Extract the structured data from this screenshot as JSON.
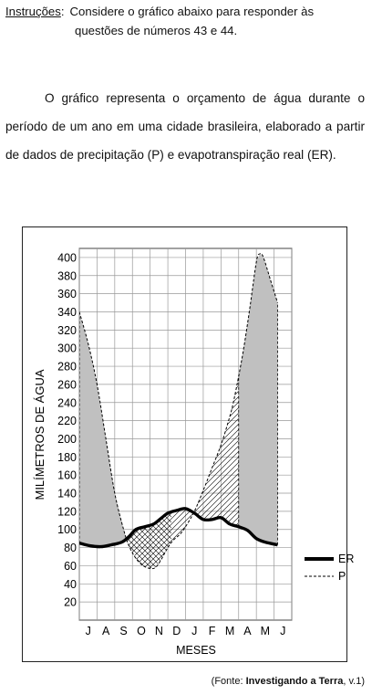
{
  "instructions": {
    "label": "Instruções",
    "colon": ":",
    "line1": "Considere o gráfico abaixo para responder às",
    "line2": "questões de números 43 e 44."
  },
  "paragraph": "O gráfico representa o orçamento de água durante o período de um ano em uma cidade brasileira, elaborado a partir de dados de precipitação (P) e evapotranspiração real (ER).",
  "source": {
    "prefix": "(Fonte: ",
    "title": "Investigando a Terra",
    "suffix": ", v.1)"
  },
  "colors": {
    "surplus_fill": "#c0c0c0",
    "line": "#000000",
    "grid": "#999999"
  },
  "chart_data": {
    "type": "line",
    "title": "",
    "xlabel": "MESES",
    "ylabel": "MILÍMETROS DE ÁGUA",
    "categories": [
      "J",
      "A",
      "S",
      "O",
      "N",
      "D",
      "J",
      "F",
      "M",
      "A",
      "M",
      "J"
    ],
    "ylim": [
      0,
      410
    ],
    "yticks": [
      20,
      40,
      60,
      80,
      100,
      120,
      140,
      160,
      180,
      200,
      220,
      240,
      260,
      280,
      300,
      320,
      340,
      360,
      380,
      400
    ],
    "grid": true,
    "legend_position": "right",
    "series": [
      {
        "name": "ER",
        "style": "thick-solid",
        "points": [
          [
            0,
            85
          ],
          [
            0.6,
            82
          ],
          [
            1.2,
            81
          ],
          [
            1.8,
            83
          ],
          [
            2.4,
            86
          ],
          [
            2.8,
            92
          ],
          [
            3.2,
            100
          ],
          [
            3.7,
            103
          ],
          [
            4.2,
            106
          ],
          [
            4.6,
            112
          ],
          [
            5.0,
            118
          ],
          [
            5.5,
            121
          ],
          [
            6.0,
            123
          ],
          [
            6.5,
            118
          ],
          [
            7.0,
            111
          ],
          [
            7.5,
            111
          ],
          [
            8.0,
            113
          ],
          [
            8.5,
            106
          ],
          [
            9.0,
            103
          ],
          [
            9.5,
            99
          ],
          [
            10.0,
            90
          ],
          [
            10.5,
            86
          ],
          [
            11.2,
            83
          ]
        ]
      },
      {
        "name": "P",
        "style": "dashed",
        "points": [
          [
            0,
            340
          ],
          [
            0.5,
            305
          ],
          [
            1.0,
            260
          ],
          [
            1.5,
            200
          ],
          [
            2.0,
            140
          ],
          [
            2.5,
            100
          ],
          [
            2.8,
            82
          ],
          [
            3.2,
            68
          ],
          [
            3.6,
            60
          ],
          [
            4.0,
            57
          ],
          [
            4.3,
            58
          ],
          [
            4.6,
            66
          ],
          [
            5.0,
            80
          ],
          [
            5.3,
            88
          ],
          [
            5.7,
            95
          ],
          [
            6.0,
            103
          ],
          [
            6.5,
            120
          ],
          [
            7.0,
            143
          ],
          [
            7.5,
            168
          ],
          [
            8.0,
            193
          ],
          [
            8.4,
            218
          ],
          [
            8.7,
            240
          ],
          [
            9.2,
            290
          ],
          [
            9.6,
            340
          ],
          [
            10.0,
            395
          ],
          [
            10.2,
            404
          ],
          [
            10.4,
            400
          ],
          [
            10.8,
            375
          ],
          [
            11.2,
            350
          ]
        ]
      }
    ],
    "legend": [
      "ER",
      "P"
    ]
  }
}
